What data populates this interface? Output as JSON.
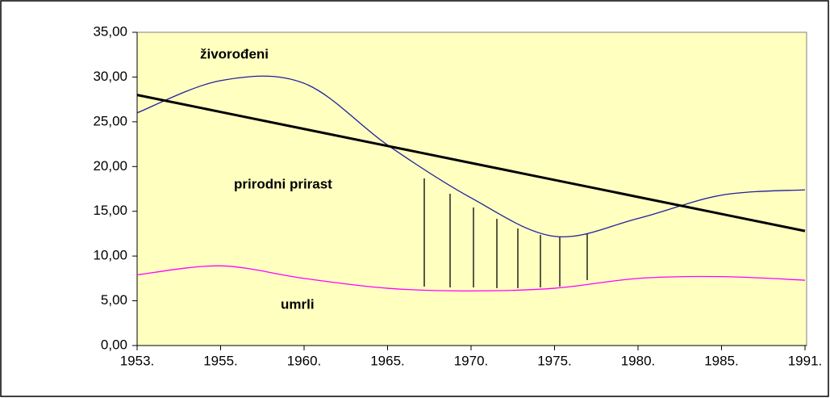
{
  "chart_data": {
    "type": "line",
    "categories": [
      "1953.",
      "1955.",
      "1960.",
      "1965.",
      "1970.",
      "1975.",
      "1980.",
      "1985.",
      "1991."
    ],
    "series": [
      {
        "name": "živorođeni",
        "color": "#1f1fa0",
        "values": [
          26.0,
          29.6,
          29.3,
          22.4,
          16.5,
          12.2,
          14.2,
          16.8,
          17.4
        ]
      },
      {
        "name": "umrli",
        "color": "#ff00ff",
        "values": [
          7.9,
          8.9,
          7.5,
          6.4,
          6.1,
          6.4,
          7.5,
          7.7,
          7.3
        ]
      },
      {
        "color": "#000000",
        "values": [
          28.0,
          26.1,
          24.2,
          22.3,
          20.4,
          18.5,
          16.6,
          14.7,
          12.8
        ]
      }
    ],
    "annotations": [
      "prirodni prirast"
    ],
    "ylim": [
      0,
      35
    ],
    "yticks": [
      {
        "value": 0,
        "label": "0,00"
      },
      {
        "value": 5,
        "label": "5,00"
      },
      {
        "value": 10,
        "label": "10,00"
      },
      {
        "value": 15,
        "label": "15,00"
      },
      {
        "value": 20,
        "label": "20,00"
      },
      {
        "value": 25,
        "label": "25,00"
      },
      {
        "value": 30,
        "label": "30,00"
      },
      {
        "value": 35,
        "label": "35,00"
      }
    ]
  }
}
